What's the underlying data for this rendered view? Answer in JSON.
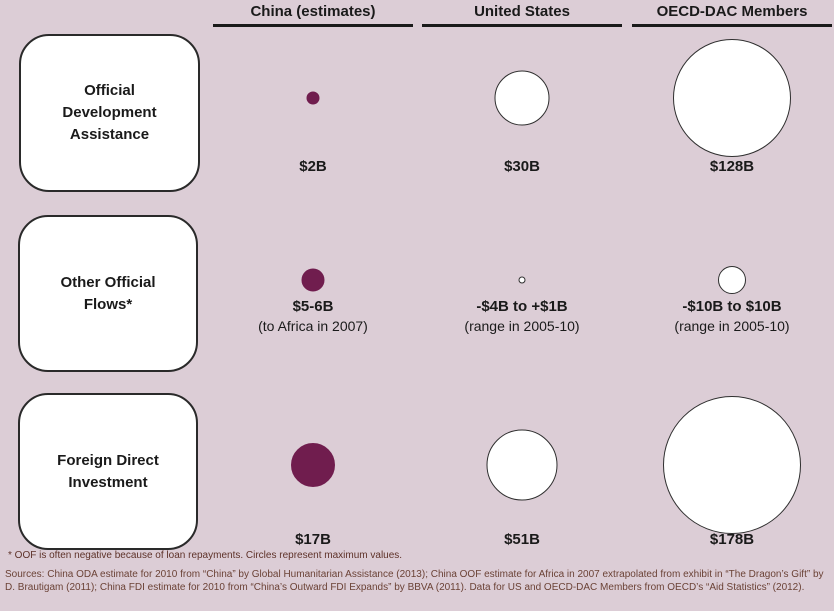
{
  "theme": {
    "background": "#dccdd6",
    "bubble_fill_dark": "#701d4e",
    "bubble_fill_light": "#ffffff",
    "bubble_border": "#2f2f2f",
    "text_color": "#1a1a1a",
    "note_color": "#6b4236"
  },
  "columns": [
    {
      "label": "China (estimates)"
    },
    {
      "label": "United States"
    },
    {
      "label": "OECD-DAC Members"
    }
  ],
  "rows": [
    {
      "label": "Official Development Assistance",
      "label_lines": [
        "Official",
        "Development",
        "Assistance"
      ],
      "cells": [
        {
          "value_label": "$2B",
          "sub_label": "",
          "diameter": 13,
          "filled": true
        },
        {
          "value_label": "$30B",
          "sub_label": "",
          "diameter": 55,
          "filled": false
        },
        {
          "value_label": "$128B",
          "sub_label": "",
          "diameter": 118,
          "filled": false
        }
      ]
    },
    {
      "label": "Other Official Flows*",
      "label_lines": [
        "Other Official",
        "Flows*"
      ],
      "cells": [
        {
          "value_label": "$5-6B",
          "sub_label": "(to Africa in 2007)",
          "diameter": 23,
          "filled": true
        },
        {
          "value_label": "-$4B to +$1B",
          "sub_label": "(range in 2005-10)",
          "diameter": 7,
          "filled": false
        },
        {
          "value_label": "-$10B to $10B",
          "sub_label": "(range in 2005-10)",
          "diameter": 28,
          "filled": false
        }
      ]
    },
    {
      "label": "Foreign Direct Investment",
      "label_lines": [
        "Foreign Direct",
        "Investment"
      ],
      "cells": [
        {
          "value_label": "$17B",
          "sub_label": "",
          "diameter": 44,
          "filled": true
        },
        {
          "value_label": "$51B",
          "sub_label": "",
          "diameter": 71,
          "filled": false
        },
        {
          "value_label": "$178B",
          "sub_label": "",
          "diameter": 138,
          "filled": false
        }
      ]
    }
  ],
  "footnote": "*  OOF is often negative because of loan repayments.  Circles represent maximum values.",
  "sources": "Sources: China ODA estimate for 2010 from “China” by Global Humanitarian Assistance (2013); China OOF  estimate for Africa in 2007 extrapolated from exhibit in “The Dragon’s Gift”  by D. Brautigam (2011); China FDI estimate  for 2010 from “China’s Outward FDI Expands” by BBVA (2011).  Data for US and OECD-DAC Members from OECD’s “Aid Statistics” (2012).",
  "chart_data": {
    "type": "scatter",
    "subtype": "bubble-comparison-matrix",
    "title": "",
    "categories": [
      "Official Development Assistance",
      "Other Official Flows*",
      "Foreign Direct Investment"
    ],
    "series": [
      {
        "name": "China (estimates)",
        "values": [
          2,
          5.5,
          17
        ],
        "value_labels": [
          "$2B",
          "$5-6B (to Africa in 2007)",
          "$17B"
        ],
        "bubble_style": "filled-dark"
      },
      {
        "name": "United States",
        "values": [
          30,
          1,
          51
        ],
        "value_labels": [
          "$30B",
          "-$4B to +$1B (range in 2005-10)",
          "$51B"
        ],
        "bubble_style": "outline-white"
      },
      {
        "name": "OECD-DAC Members",
        "values": [
          128,
          10,
          178
        ],
        "value_labels": [
          "$128B",
          "-$10B to $10B (range in 2005-10)",
          "$178B"
        ],
        "bubble_style": "outline-white"
      }
    ],
    "units": "billion USD",
    "encoding": "circle area proportional to maximum value",
    "legend_position": "none",
    "grid": false
  }
}
